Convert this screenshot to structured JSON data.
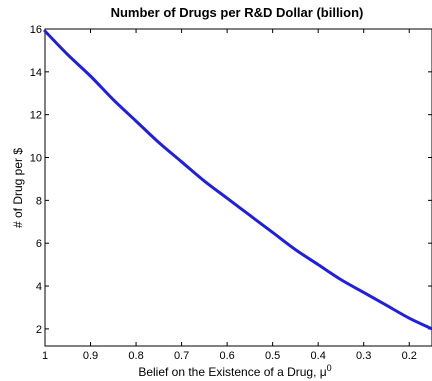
{
  "chart_data": {
    "type": "line",
    "title": "Number of Drugs per R&D Dollar (billion)",
    "xlabel": "Belief on the Existence of a Drug, μ",
    "xlabel_superscript": "0",
    "ylabel": "# of Drug per $",
    "xlim": [
      1,
      0.15
    ],
    "ylim": [
      1.2,
      16
    ],
    "x_reversed": true,
    "xticks": [
      1,
      0.9,
      0.8,
      0.7,
      0.6,
      0.5,
      0.4,
      0.3,
      0.2
    ],
    "xtick_labels": [
      "1",
      "0.9",
      "0.8",
      "0.7",
      "0.6",
      "0.5",
      "0.4",
      "0.3",
      "0.2"
    ],
    "yticks": [
      2,
      4,
      6,
      8,
      10,
      12,
      14,
      16
    ],
    "ytick_labels": [
      "2",
      "4",
      "6",
      "8",
      "10",
      "12",
      "14",
      "16"
    ],
    "grid": false,
    "series": [
      {
        "color": "#1f1fdc",
        "x": [
          1.0,
          0.95,
          0.9,
          0.85,
          0.8,
          0.75,
          0.7,
          0.65,
          0.6,
          0.55,
          0.5,
          0.45,
          0.4,
          0.35,
          0.3,
          0.25,
          0.2,
          0.15
        ],
        "y": [
          15.9,
          14.8,
          13.8,
          12.7,
          11.7,
          10.7,
          9.8,
          8.9,
          8.1,
          7.3,
          6.5,
          5.7,
          5.0,
          4.3,
          3.7,
          3.1,
          2.5,
          2.0
        ]
      }
    ]
  }
}
